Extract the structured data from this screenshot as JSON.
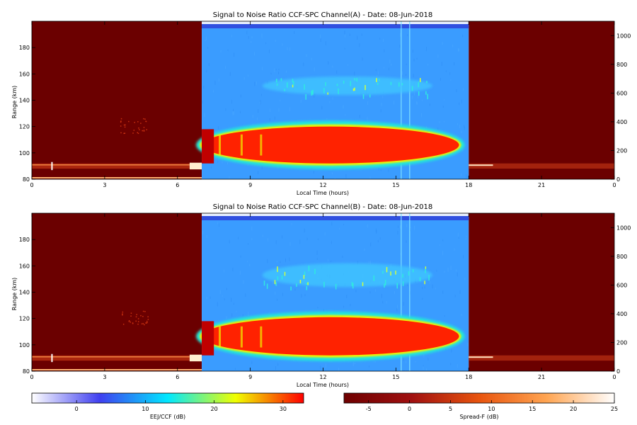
{
  "chart_data": [
    {
      "type": "heatmap",
      "title": "Signal to Noise Ratio CCF-SPC Channel(A) - Date: 08-Jun-2018",
      "xlabel": "Local Time (hours)",
      "ylabel": "Range (km)",
      "xlim": [
        0,
        24
      ],
      "ylim": [
        80,
        200
      ],
      "right_ylim": [
        0,
        1100
      ],
      "x_ticks": [
        "0",
        "3",
        "6",
        "9",
        "12",
        "15",
        "18",
        "21",
        "0"
      ],
      "y_ticks": [
        "80",
        "100",
        "120",
        "140",
        "160",
        "180"
      ],
      "right_ticks": [
        "0",
        "200",
        "400",
        "600",
        "800",
        "1000"
      ],
      "regions": [
        {
          "mode": "Spread-F",
          "x": [
            0,
            7
          ]
        },
        {
          "mode": "EEJ/CCF",
          "x": [
            7,
            18
          ]
        },
        {
          "mode": "Spread-F",
          "x": [
            18,
            24
          ]
        }
      ],
      "features": [
        {
          "desc": "EEJ echo layer",
          "x": [
            7,
            17.6
          ],
          "range_km": [
            92,
            120
          ],
          "snr_db": 30
        },
        {
          "desc": "150 km echoes",
          "x": [
            9.5,
            16.5
          ],
          "range_km": [
            144,
            158
          ],
          "snr_db": 12
        },
        {
          "desc": "bottomside layer",
          "x": [
            0,
            7
          ],
          "range_km": [
            88,
            92
          ],
          "snr_db": 8
        }
      ]
    },
    {
      "type": "heatmap",
      "title": "Signal to Noise Ratio CCF-SPC Channel(B) - Date: 08-Jun-2018",
      "xlabel": "Local Time (hours)",
      "ylabel": "Range (km)",
      "xlim": [
        0,
        24
      ],
      "ylim": [
        80,
        200
      ],
      "right_ylim": [
        0,
        1100
      ],
      "x_ticks": [
        "0",
        "3",
        "6",
        "9",
        "12",
        "15",
        "18",
        "21",
        "0"
      ],
      "y_ticks": [
        "80",
        "100",
        "120",
        "140",
        "160",
        "180"
      ],
      "right_ticks": [
        "0",
        "200",
        "400",
        "600",
        "800",
        "1000"
      ],
      "regions": [
        {
          "mode": "Spread-F",
          "x": [
            0,
            7
          ]
        },
        {
          "mode": "EEJ/CCF",
          "x": [
            7,
            18
          ]
        },
        {
          "mode": "Spread-F",
          "x": [
            18,
            24
          ]
        }
      ],
      "features": [
        {
          "desc": "EEJ echo layer",
          "x": [
            7,
            17.6
          ],
          "range_km": [
            92,
            121
          ],
          "snr_db": 30
        },
        {
          "desc": "150 km echoes",
          "x": [
            9.5,
            16.5
          ],
          "range_km": [
            144,
            162
          ],
          "snr_db": 14
        },
        {
          "desc": "bottomside layer",
          "x": [
            0,
            7
          ],
          "range_km": [
            88,
            92
          ],
          "snr_db": 8
        }
      ]
    }
  ],
  "colorbars": [
    {
      "label": "EEJ/CCF (dB)",
      "range": [
        -6.5,
        33
      ],
      "ticks": [
        "0",
        "10",
        "20",
        "30"
      ],
      "stops": [
        "#ffffff",
        "#3f3ff0",
        "#00e8ff",
        "#f0ff00",
        "#ff0000"
      ]
    },
    {
      "label": "Spread-F (dB)",
      "range": [
        -8,
        25
      ],
      "ticks": [
        "-5",
        "0",
        "5",
        "10",
        "15",
        "20",
        "25"
      ],
      "stops": [
        "#6e0000",
        "#a01010",
        "#e8540e",
        "#ffa552",
        "#ffffff"
      ]
    }
  ],
  "colors": {
    "spread_bg": "#6b0000",
    "eej_bg": "#3a9cff",
    "eej_core": "#ff2200",
    "eej_edge": "#f0f000",
    "eej_mid": "#20e8d8"
  }
}
